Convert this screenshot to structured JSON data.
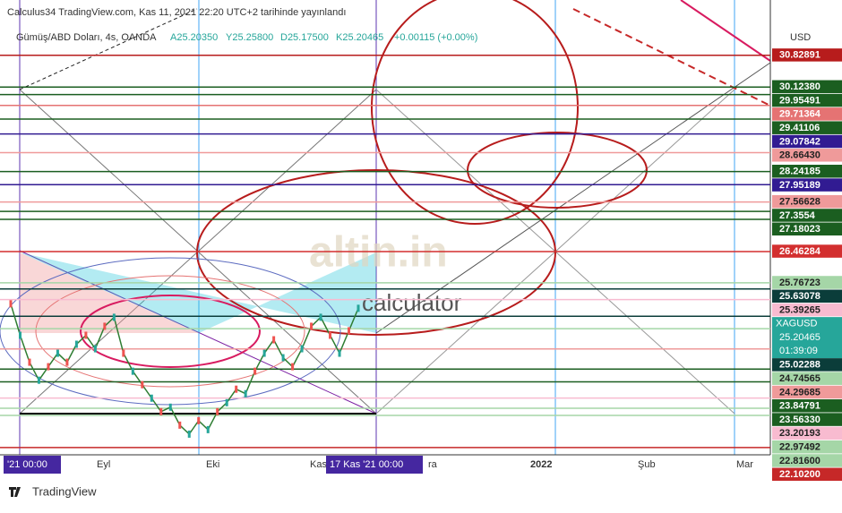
{
  "chart_data": {
    "type": "line",
    "title": "Calculus34 TradingView.com, Kas 11, 2021 22:20 UTC+2 tarihinde yayınlandı",
    "symbol": "Gümüş/ABD Doları, 4s, OANDA",
    "ohlc": [
      "A25.20350",
      "Y25.25800",
      "D25.17500",
      "K25.20465",
      "+0.00115 (+0.00%)"
    ],
    "currency": "USD",
    "watermark": [
      "altin.in",
      "calculator"
    ],
    "footer": "TradingView",
    "color": "#2e7d32",
    "values": [
      25.3,
      24.6,
      24.0,
      23.6,
      23.9,
      24.2,
      24.0,
      24.4,
      24.6,
      24.3,
      24.8,
      25.0,
      24.2,
      23.8,
      23.5,
      23.2,
      22.9,
      23.0,
      22.6,
      22.4,
      22.7,
      22.5,
      22.9,
      23.1,
      23.4,
      23.3,
      23.8,
      24.2,
      24.5,
      24.1,
      23.9,
      24.3,
      24.8,
      25.0,
      24.6,
      24.2,
      24.7,
      25.2
    ],
    "ylim": [
      21.94,
      32.06
    ],
    "yticks": [
      30.82891,
      {
        "value": 30.1238,
        "label": "30.12380"
      },
      29.95491,
      29.71364,
      29.41106,
      29.07842,
      {
        "value": 28.6643,
        "label": "28.66430"
      },
      28.24185,
      27.95189,
      27.56628,
      27.3554,
      27.18023,
      26.46284,
      25.76723,
      25.63078,
      25.39265,
      25.02288,
      24.74565,
      24.29685,
      23.84791,
      {
        "value": 23.5633,
        "label": "23.56330"
      },
      23.20193,
      22.97492,
      {
        "value": 22.816,
        "label": "22.81600"
      },
      {
        "value": 22.102,
        "label": "22.10200"
      }
    ],
    "ytick_colors": [
      "#b71c1c",
      "#1b5e20",
      "#1b5e20",
      "#e57373",
      "#1b5e20",
      "#311b92",
      "#ef9a9a",
      "#1b5e20",
      "#311b92",
      "#ef9a9a",
      "#1b5e20",
      "#1b5e20",
      "#d32f2f",
      "#a5d6a7",
      "#0b3d3a",
      "#f8bbd0",
      "#0b3d3a",
      "#a5d6a7",
      "#ef9a9a",
      "#1b5e20",
      "#1b5e20",
      "#f8bbd0",
      "#a5d6a7",
      "#a5d6a7",
      "#c62828"
    ],
    "last_price": 25.20465,
    "last_price_tag": "XAGUSD",
    "countdown": "01:39:09",
    "xtick_labels": [
      "'21  00:00",
      "Eyl",
      "Eki",
      "Kas",
      "17 Kas '21  00:00",
      "ra",
      "2022",
      "Şub",
      "Mar"
    ]
  }
}
